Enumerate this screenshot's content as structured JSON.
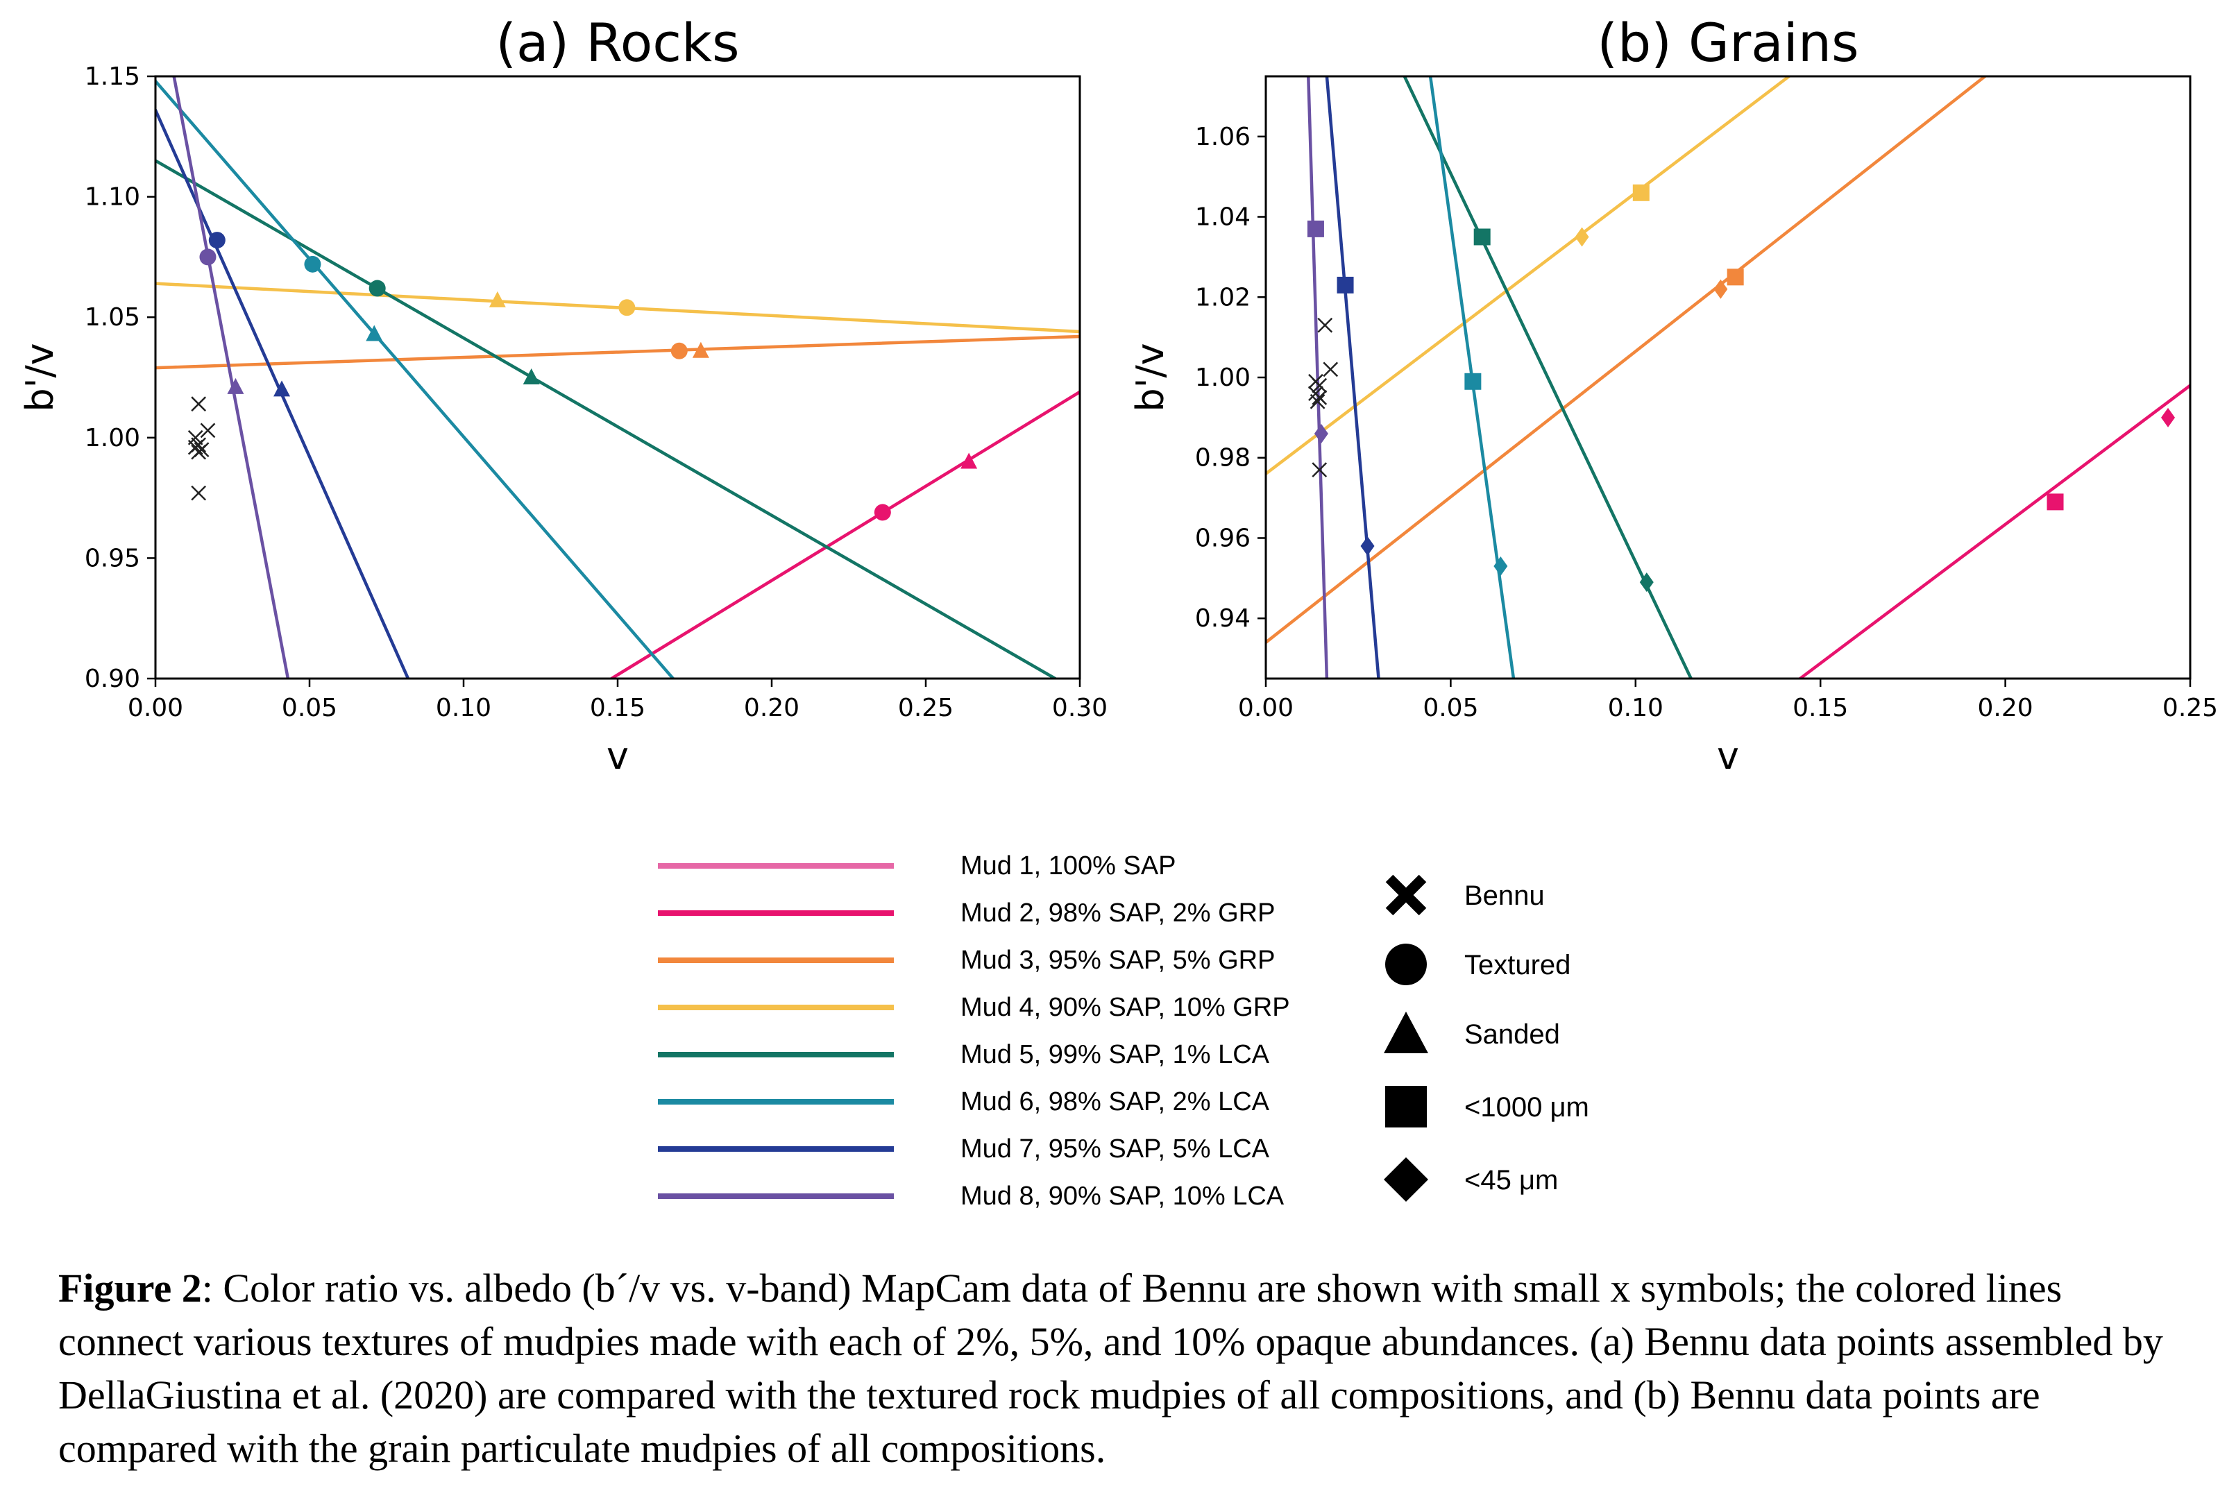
{
  "chart_data": [
    {
      "type": "line",
      "title": "(a) Rocks",
      "xlabel": "v",
      "ylabel": "b'/v",
      "xlim": [
        0.0,
        0.3
      ],
      "ylim": [
        0.9,
        1.15
      ],
      "xticks": [
        "0.00",
        "0.05",
        "0.10",
        "0.15",
        "0.20",
        "0.25",
        "0.30"
      ],
      "yticks": [
        "0.90",
        "0.95",
        "1.00",
        "1.05",
        "1.10",
        "1.15"
      ],
      "lines": [
        {
          "series": "Mud 2, 98% SAP, 2% GRP",
          "color": "#e8136e",
          "x1": 0.148,
          "y1": 0.9,
          "x2": 0.3,
          "y2": 1.019
        },
        {
          "series": "Mud 3, 95% SAP, 5% GRP",
          "color": "#f2873c",
          "x1": 0.0,
          "y1": 1.029,
          "x2": 0.3,
          "y2": 1.042
        },
        {
          "series": "Mud 4, 90% SAP, 10% GRP",
          "color": "#f5c04a",
          "x1": 0.0,
          "y1": 1.064,
          "x2": 0.3,
          "y2": 1.044
        },
        {
          "series": "Mud 5, 99% SAP, 1% LCA",
          "color": "#137565",
          "x1": 0.0,
          "y1": 1.115,
          "x2": 0.292,
          "y2": 0.9
        },
        {
          "series": "Mud 6, 98% SAP, 2% LCA",
          "color": "#1b8aa2",
          "x1": 0.0,
          "y1": 1.148,
          "x2": 0.168,
          "y2": 0.9
        },
        {
          "series": "Mud 7, 95% SAP, 5% LCA",
          "color": "#243b95",
          "x1": 0.0,
          "y1": 1.136,
          "x2": 0.082,
          "y2": 0.9
        },
        {
          "series": "Mud 8, 90% SAP, 10% LCA",
          "color": "#6a51a3",
          "x1": 0.006,
          "y1": 1.15,
          "x2": 0.043,
          "y2": 0.9
        }
      ],
      "markers": [
        {
          "series": "Mud 2, 98% SAP, 2% GRP",
          "texture": "Textured",
          "shape": "circle",
          "color": "#e8136e",
          "x": 0.236,
          "y": 0.969
        },
        {
          "series": "Mud 2, 98% SAP, 2% GRP",
          "texture": "Sanded",
          "shape": "triangle",
          "color": "#e8136e",
          "x": 0.264,
          "y": 0.99
        },
        {
          "series": "Mud 3, 95% SAP, 5% GRP",
          "texture": "Textured",
          "shape": "circle",
          "color": "#f2873c",
          "x": 0.17,
          "y": 1.036
        },
        {
          "series": "Mud 3, 95% SAP, 5% GRP",
          "texture": "Sanded",
          "shape": "triangle",
          "color": "#f2873c",
          "x": 0.177,
          "y": 1.036
        },
        {
          "series": "Mud 4, 90% SAP, 10% GRP",
          "texture": "Textured",
          "shape": "circle",
          "color": "#f5c04a",
          "x": 0.153,
          "y": 1.054
        },
        {
          "series": "Mud 4, 90% SAP, 10% GRP",
          "texture": "Sanded",
          "shape": "triangle",
          "color": "#f5c04a",
          "x": 0.111,
          "y": 1.057
        },
        {
          "series": "Mud 5, 99% SAP, 1% LCA",
          "texture": "Textured",
          "shape": "circle",
          "color": "#137565",
          "x": 0.072,
          "y": 1.062
        },
        {
          "series": "Mud 5, 99% SAP, 1% LCA",
          "texture": "Sanded",
          "shape": "triangle",
          "color": "#137565",
          "x": 0.122,
          "y": 1.025
        },
        {
          "series": "Mud 6, 98% SAP, 2% LCA",
          "texture": "Textured",
          "shape": "circle",
          "color": "#1b8aa2",
          "x": 0.051,
          "y": 1.072
        },
        {
          "series": "Mud 6, 98% SAP, 2% LCA",
          "texture": "Sanded",
          "shape": "triangle",
          "color": "#1b8aa2",
          "x": 0.071,
          "y": 1.043
        },
        {
          "series": "Mud 7, 95% SAP, 5% LCA",
          "texture": "Textured",
          "shape": "circle",
          "color": "#243b95",
          "x": 0.02,
          "y": 1.082
        },
        {
          "series": "Mud 7, 95% SAP, 5% LCA",
          "texture": "Sanded",
          "shape": "triangle",
          "color": "#243b95",
          "x": 0.041,
          "y": 1.02
        },
        {
          "series": "Mud 8, 90% SAP, 10% LCA",
          "texture": "Textured",
          "shape": "circle",
          "color": "#6a51a3",
          "x": 0.017,
          "y": 1.075
        },
        {
          "series": "Mud 8, 90% SAP, 10% LCA",
          "texture": "Sanded",
          "shape": "triangle",
          "color": "#6a51a3",
          "x": 0.026,
          "y": 1.021
        }
      ],
      "bennu": [
        {
          "x": 0.014,
          "y": 1.014
        },
        {
          "x": 0.017,
          "y": 1.003
        },
        {
          "x": 0.013,
          "y": 1.0
        },
        {
          "x": 0.014,
          "y": 0.997
        },
        {
          "x": 0.013,
          "y": 0.996
        },
        {
          "x": 0.015,
          "y": 0.995
        },
        {
          "x": 0.014,
          "y": 0.994
        },
        {
          "x": 0.014,
          "y": 0.977
        }
      ]
    },
    {
      "type": "line",
      "title": "(b) Grains",
      "xlabel": "v",
      "ylabel": "b'/v",
      "xlim": [
        0.0,
        0.25
      ],
      "ylim": [
        0.925,
        1.075
      ],
      "xticks": [
        "0.00",
        "0.05",
        "0.10",
        "0.15",
        "0.20",
        "0.25"
      ],
      "yticks": [
        "0.94",
        "0.96",
        "0.98",
        "1.00",
        "1.02",
        "1.04",
        "1.06"
      ],
      "lines": [
        {
          "series": "Mud 2, 98% SAP, 2% GRP",
          "color": "#e8136e",
          "x1": 0.1445,
          "y1": 0.925,
          "x2": 0.25,
          "y2": 0.998
        },
        {
          "series": "Mud 3, 95% SAP, 5% GRP",
          "color": "#f2873c",
          "x1": 0.0,
          "y1": 0.934,
          "x2": 0.1945,
          "y2": 1.075
        },
        {
          "series": "Mud 4, 90% SAP, 10% GRP",
          "color": "#f5c04a",
          "x1": 0.0,
          "y1": 0.976,
          "x2": 0.1415,
          "y2": 1.075
        },
        {
          "series": "Mud 5, 99% SAP, 1% LCA",
          "color": "#137565",
          "x1": 0.0375,
          "y1": 1.075,
          "x2": 0.115,
          "y2": 0.925
        },
        {
          "series": "Mud 6, 98% SAP, 2% LCA",
          "color": "#1b8aa2",
          "x1": 0.0445,
          "y1": 1.075,
          "x2": 0.067,
          "y2": 0.925
        },
        {
          "series": "Mud 7, 95% SAP, 5% LCA",
          "color": "#243b95",
          "x1": 0.0165,
          "y1": 1.075,
          "x2": 0.0305,
          "y2": 0.925
        },
        {
          "series": "Mud 8, 90% SAP, 10% LCA",
          "color": "#6a51a3",
          "x1": 0.0115,
          "y1": 1.075,
          "x2": 0.0165,
          "y2": 0.925
        }
      ],
      "markers": [
        {
          "series": "Mud 2, 98% SAP, 2% GRP",
          "texture": "<1000 μm",
          "shape": "square",
          "color": "#e8136e",
          "x": 0.2135,
          "y": 0.969
        },
        {
          "series": "Mud 2, 98% SAP, 2% GRP",
          "texture": "<45 μm",
          "shape": "diamond",
          "color": "#e8136e",
          "x": 0.244,
          "y": 0.99
        },
        {
          "series": "Mud 3, 95% SAP, 5% GRP",
          "texture": "<1000 μm",
          "shape": "square",
          "color": "#f2873c",
          "x": 0.127,
          "y": 1.025
        },
        {
          "series": "Mud 3, 95% SAP, 5% GRP",
          "texture": "<45 μm",
          "shape": "diamond",
          "color": "#f2873c",
          "x": 0.123,
          "y": 1.022
        },
        {
          "series": "Mud 4, 90% SAP, 10% GRP",
          "texture": "<1000 μm",
          "shape": "square",
          "color": "#f5c04a",
          "x": 0.1015,
          "y": 1.046
        },
        {
          "series": "Mud 4, 90% SAP, 10% GRP",
          "texture": "<45 μm",
          "shape": "diamond",
          "color": "#f5c04a",
          "x": 0.0855,
          "y": 1.035
        },
        {
          "series": "Mud 5, 99% SAP, 1% LCA",
          "texture": "<1000 μm",
          "shape": "square",
          "color": "#137565",
          "x": 0.0585,
          "y": 1.035
        },
        {
          "series": "Mud 5, 99% SAP, 1% LCA",
          "texture": "<45 μm",
          "shape": "diamond",
          "color": "#137565",
          "x": 0.103,
          "y": 0.949
        },
        {
          "series": "Mud 6, 98% SAP, 2% LCA",
          "texture": "<1000 μm",
          "shape": "square",
          "color": "#1b8aa2",
          "x": 0.056,
          "y": 0.999
        },
        {
          "series": "Mud 6, 98% SAP, 2% LCA",
          "texture": "<45 μm",
          "shape": "diamond",
          "color": "#1b8aa2",
          "x": 0.0635,
          "y": 0.953
        },
        {
          "series": "Mud 7, 95% SAP, 5% LCA",
          "texture": "<1000 μm",
          "shape": "square",
          "color": "#243b95",
          "x": 0.0215,
          "y": 1.023
        },
        {
          "series": "Mud 7, 95% SAP, 5% LCA",
          "texture": "<45 μm",
          "shape": "diamond",
          "color": "#243b95",
          "x": 0.0275,
          "y": 0.958
        },
        {
          "series": "Mud 8, 90% SAP, 10% LCA",
          "texture": "<1000 μm",
          "shape": "square",
          "color": "#6a51a3",
          "x": 0.0135,
          "y": 1.037
        },
        {
          "series": "Mud 8, 90% SAP, 10% LCA",
          "texture": "<45 μm",
          "shape": "diamond",
          "color": "#6a51a3",
          "x": 0.015,
          "y": 0.986
        }
      ],
      "bennu": [
        {
          "x": 0.016,
          "y": 1.013
        },
        {
          "x": 0.0175,
          "y": 1.002
        },
        {
          "x": 0.0135,
          "y": 0.999
        },
        {
          "x": 0.0145,
          "y": 0.998
        },
        {
          "x": 0.0135,
          "y": 0.996
        },
        {
          "x": 0.0145,
          "y": 0.995
        },
        {
          "x": 0.014,
          "y": 0.994
        },
        {
          "x": 0.0145,
          "y": 0.977
        }
      ]
    }
  ],
  "legend": {
    "series": [
      {
        "label": "Mud 1, 100% SAP",
        "color": "#e667a6"
      },
      {
        "label": "Mud 2, 98% SAP, 2% GRP",
        "color": "#e8136e"
      },
      {
        "label": "Mud 3, 95% SAP, 5% GRP",
        "color": "#f2873c"
      },
      {
        "label": "Mud 4, 90% SAP, 10% GRP",
        "color": "#f5c04a"
      },
      {
        "label": "Mud 5, 99% SAP, 1% LCA",
        "color": "#137565"
      },
      {
        "label": "Mud 6, 98% SAP, 2% LCA",
        "color": "#1b8aa2"
      },
      {
        "label": "Mud 7, 95% SAP, 5% LCA",
        "color": "#243b95"
      },
      {
        "label": "Mud 8, 90% SAP, 10% LCA",
        "color": "#6a51a3"
      }
    ],
    "markers": [
      {
        "label": "Bennu",
        "shape": "x"
      },
      {
        "label": "Textured",
        "shape": "circle"
      },
      {
        "label": "Sanded",
        "shape": "triangle"
      },
      {
        "label": "<1000 μm",
        "shape": "square"
      },
      {
        "label": "<45 μm",
        "shape": "diamond"
      }
    ]
  },
  "caption": {
    "label": "Figure 2",
    "text": ": Color ratio vs. albedo (b´/v vs. v-band) MapCam data of Bennu are shown with small x symbols; the colored lines connect various textures of mudpies made with each of 2%, 5%, and 10% opaque abundances. (a) Bennu data points assembled by DellaGiustina et al. (2020) are compared with the textured rock mudpies of all compositions, and (b) Bennu data points are compared with the grain particulate mudpies of all compositions."
  }
}
